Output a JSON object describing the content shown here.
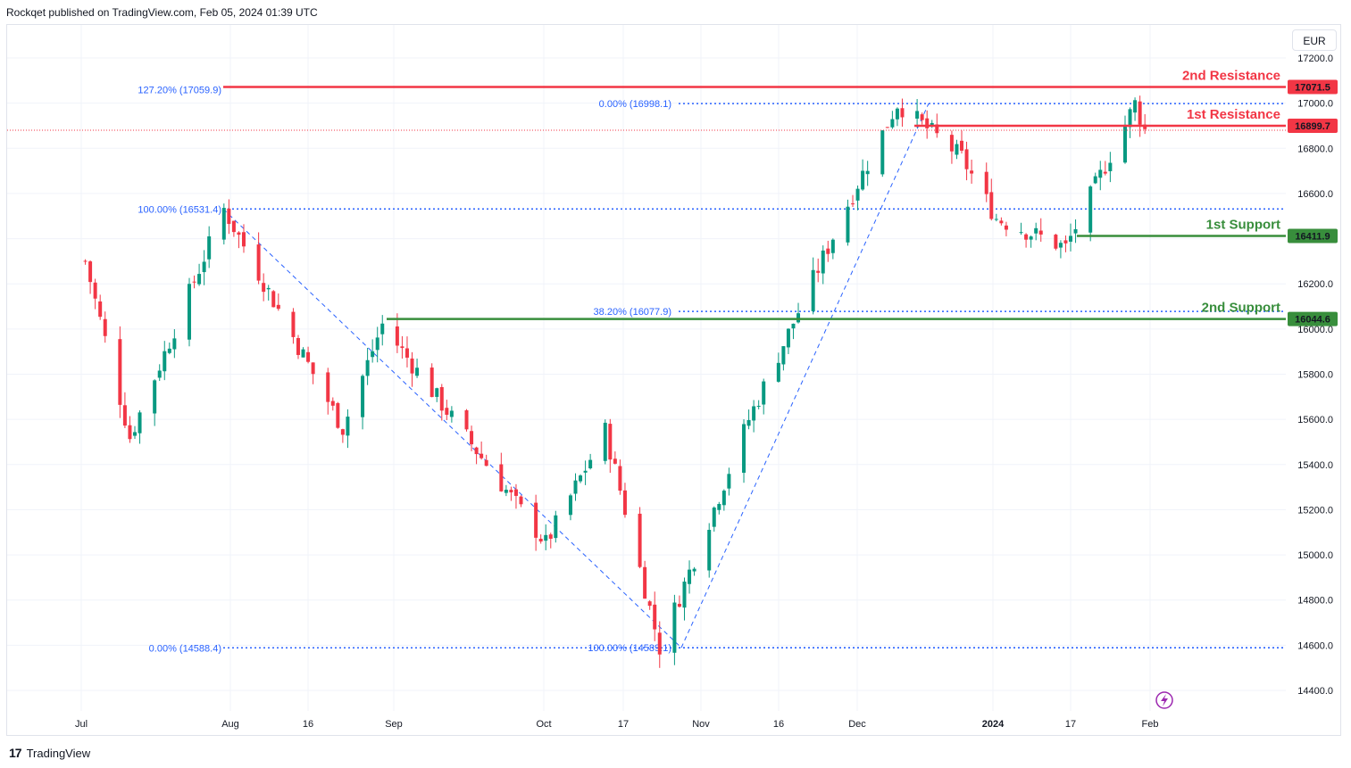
{
  "header": {
    "text": "Rockqet published on TradingView.com, Feb 05, 2024 01:39 UTC"
  },
  "currency": "EUR",
  "footer": {
    "brand": "TradingView",
    "logo": "17"
  },
  "colors": {
    "up": "#089981",
    "down": "#f23645",
    "resistance": "#f23645",
    "support": "#388e3c",
    "fib": "#2962ff",
    "grid": "#f0f3fa"
  },
  "chart_data": {
    "type": "candlestick",
    "price_axis": {
      "min": 14400,
      "max": 17200,
      "ticks": [
        "17200.0",
        "17000.0",
        "16800.0",
        "16600.0",
        "16400.0",
        "16200.0",
        "16000.0",
        "15800.0",
        "15600.0",
        "15400.0",
        "15200.0",
        "15000.0",
        "14800.0",
        "14600.0",
        "14400.0"
      ]
    },
    "time_axis": {
      "labels": [
        "Jul",
        "Aug",
        "16",
        "Sep",
        "Oct",
        "17",
        "Nov",
        "16",
        "Dec",
        "2024",
        "17",
        "Feb"
      ]
    },
    "levels": [
      {
        "name": "2nd Resistance",
        "value": 17071.5,
        "tag": "17071.5",
        "kind": "resistance"
      },
      {
        "name": "1st Resistance",
        "value": 16899.7,
        "tag": "16899.7",
        "kind": "resistance"
      },
      {
        "name": "1st Support",
        "value": 16411.9,
        "tag": "16411.9",
        "kind": "support"
      },
      {
        "name": "2nd Support",
        "value": 16044.6,
        "tag": "16044.6",
        "kind": "support"
      }
    ],
    "fib_labels": [
      {
        "text": "127.20% (17059.9)",
        "value": 17059.9
      },
      {
        "text": "0.00% (16998.1)",
        "value": 16998.1
      },
      {
        "text": "100.00% (16531.4)",
        "value": 16531.4
      },
      {
        "text": "38.20% (16077.9)",
        "value": 16077.9
      },
      {
        "text": "0.00% (14588.4)",
        "value": 14588.4
      },
      {
        "text": "100.00% (14589.1)",
        "value": 14589.1
      }
    ],
    "last_close": 16880,
    "swings": [
      {
        "date": "Jul 3",
        "price": 16300
      },
      {
        "date": "Jul 12",
        "price": 15520
      },
      {
        "date": "Jul 31",
        "price": 16531.4
      },
      {
        "date": "Aug 24",
        "price": 15560
      },
      {
        "date": "Sep 1",
        "price": 16020
      },
      {
        "date": "Oct 4",
        "price": 15050
      },
      {
        "date": "Oct 16",
        "price": 15550
      },
      {
        "date": "Oct 27",
        "price": 14589.1
      },
      {
        "date": "Nov 14",
        "price": 15600
      },
      {
        "date": "Dec 5",
        "price": 16600
      },
      {
        "date": "Dec 14",
        "price": 16998.1
      },
      {
        "date": "Dec 27",
        "price": 16760
      },
      {
        "date": "Jan 3",
        "price": 16490
      },
      {
        "date": "Jan 17",
        "price": 16360
      },
      {
        "date": "Jan 31",
        "price": 16998
      },
      {
        "date": "Feb 2",
        "price": 16880
      }
    ]
  }
}
